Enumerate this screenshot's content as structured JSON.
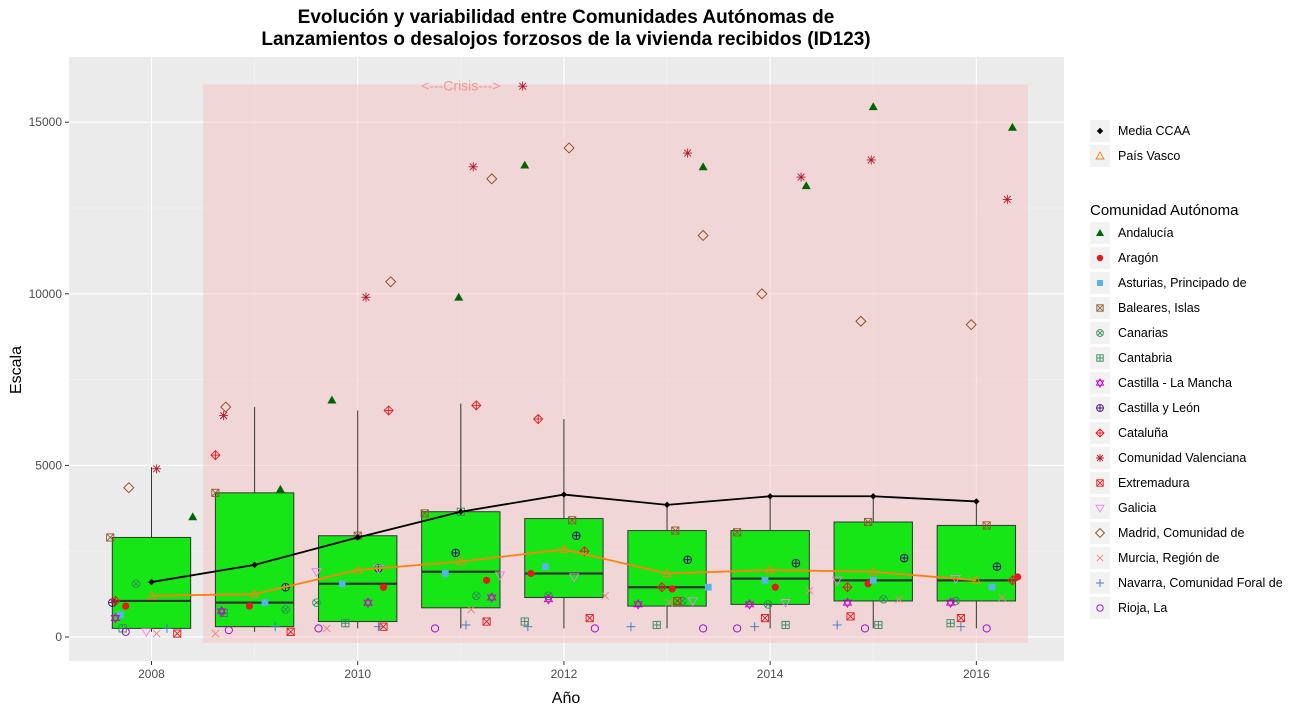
{
  "chart_data": {
    "type": "box",
    "title_line1": "Evolución y variabilidad entre Comunidades Autónomas de",
    "title_line2": "Lanzamientos o desalojos forzosos de la vivienda recibidos (ID123)",
    "xlabel": "Año",
    "ylabel": "Escala",
    "xlim": [
      2007.2,
      2016.85
    ],
    "ylim": [
      -700,
      16900
    ],
    "x_ticks": [
      2008,
      2010,
      2012,
      2014,
      2016
    ],
    "y_ticks": [
      0,
      5000,
      10000,
      15000
    ],
    "grid": true,
    "crisis_region": {
      "x_start": 2008.5,
      "x_end": 2016.5,
      "y_top": 16100,
      "label": "<---Crisis--->",
      "label_x": 2011.0,
      "color": "#f7b9b9"
    },
    "box_color": "#16e616",
    "boxes": [
      {
        "year": 2008,
        "q1": 250,
        "median": 1050,
        "q3": 2900,
        "lower": 150,
        "upper": 4950
      },
      {
        "year": 2009,
        "q1": 300,
        "median": 1000,
        "q3": 4200,
        "lower": 150,
        "upper": 6700
      },
      {
        "year": 2010,
        "q1": 450,
        "median": 1550,
        "q3": 2950,
        "lower": 250,
        "upper": 6600
      },
      {
        "year": 2011,
        "q1": 850,
        "median": 1900,
        "q3": 3650,
        "lower": 250,
        "upper": 6800
      },
      {
        "year": 2012,
        "q1": 1150,
        "median": 1850,
        "q3": 3450,
        "lower": 250,
        "upper": 6350
      },
      {
        "year": 2013,
        "q1": 900,
        "median": 1450,
        "q3": 3100,
        "lower": 250,
        "upper": 3800
      },
      {
        "year": 2014,
        "q1": 950,
        "median": 1700,
        "q3": 3100,
        "lower": 250,
        "upper": 4050
      },
      {
        "year": 2015,
        "q1": 1050,
        "median": 1650,
        "q3": 3350,
        "lower": 250,
        "upper": 4100
      },
      {
        "year": 2016,
        "q1": 1050,
        "median": 1650,
        "q3": 3250,
        "lower": 250,
        "upper": 3900
      }
    ],
    "series": [
      {
        "name": "Media CCAA",
        "color": "#000000",
        "shape": "diamond",
        "line": true,
        "points": [
          [
            2008,
            1600
          ],
          [
            2009,
            2100
          ],
          [
            2010,
            2900
          ],
          [
            2011,
            3650
          ],
          [
            2012,
            4150
          ],
          [
            2013,
            3850
          ],
          [
            2014,
            4100
          ],
          [
            2015,
            4100
          ],
          [
            2016,
            3950
          ]
        ]
      },
      {
        "name": "País Vasco",
        "color": "#ff7f0e",
        "shape": "triangle-open",
        "line": true,
        "points": [
          [
            2008,
            1200
          ],
          [
            2009,
            1250
          ],
          [
            2010,
            1950
          ],
          [
            2011,
            2200
          ],
          [
            2012,
            2550
          ],
          [
            2013,
            1850
          ],
          [
            2014,
            1950
          ],
          [
            2015,
            1900
          ],
          [
            2016,
            1650
          ]
        ]
      }
    ],
    "legend_title": "Comunidad Autónoma",
    "regions": [
      {
        "name": "Andalucía",
        "color": "#006400",
        "shape": "triangle-filled",
        "points": [
          [
            2008.4,
            3500
          ],
          [
            2009.25,
            4300
          ],
          [
            2009.75,
            6900
          ],
          [
            2010.98,
            9900
          ],
          [
            2011.62,
            13750
          ],
          [
            2013.35,
            13700
          ],
          [
            2014.35,
            13150
          ],
          [
            2015.0,
            15450
          ],
          [
            2016.35,
            14850
          ]
        ]
      },
      {
        "name": "Aragón",
        "color": "#e31a1c",
        "shape": "circle-filled",
        "points": [
          [
            2007.75,
            900
          ],
          [
            2008.95,
            900
          ],
          [
            2010.25,
            1450
          ],
          [
            2011.25,
            1650
          ],
          [
            2011.68,
            1850
          ],
          [
            2013.05,
            1400
          ],
          [
            2014.05,
            1450
          ],
          [
            2014.95,
            1550
          ],
          [
            2016.4,
            1750
          ]
        ]
      },
      {
        "name": "Asturias, Principado de",
        "color": "#56b4e9",
        "shape": "square-filled",
        "points": [
          [
            2007.7,
            650
          ],
          [
            2009.1,
            1000
          ],
          [
            2009.85,
            1550
          ],
          [
            2010.85,
            1850
          ],
          [
            2011.82,
            2050
          ],
          [
            2013.4,
            1450
          ],
          [
            2013.95,
            1650
          ],
          [
            2015.0,
            1650
          ],
          [
            2016.15,
            1450
          ]
        ]
      },
      {
        "name": "Baleares, Islas",
        "color": "#8b5a2b",
        "shape": "square-x",
        "points": [
          [
            2007.6,
            2900
          ],
          [
            2008.62,
            4200
          ],
          [
            2010.0,
            2950
          ],
          [
            2010.65,
            3600
          ],
          [
            2012.08,
            3400
          ],
          [
            2013.08,
            3100
          ],
          [
            2013.68,
            3050
          ],
          [
            2014.95,
            3350
          ],
          [
            2016.1,
            3250
          ]
        ]
      },
      {
        "name": "Canarias",
        "color": "#2e8b57",
        "shape": "circle-x",
        "points": [
          [
            2007.85,
            1550
          ],
          [
            2009.3,
            800
          ],
          [
            2009.6,
            1000
          ],
          [
            2011.15,
            1200
          ],
          [
            2011.85,
            1200
          ],
          [
            2013.15,
            1050
          ],
          [
            2013.98,
            950
          ],
          [
            2015.1,
            1100
          ],
          [
            2015.8,
            1050
          ]
        ]
      },
      {
        "name": "Cantabria",
        "color": "#2e8b57",
        "shape": "square-plus",
        "points": [
          [
            2007.72,
            250
          ],
          [
            2008.7,
            700
          ],
          [
            2009.88,
            400
          ],
          [
            2011.0,
            3650
          ],
          [
            2011.62,
            450
          ],
          [
            2012.9,
            350
          ],
          [
            2014.15,
            350
          ],
          [
            2015.05,
            350
          ],
          [
            2015.75,
            400
          ]
        ]
      },
      {
        "name": "Castilla - La Mancha",
        "color": "#cc00cc",
        "shape": "star-of-david",
        "points": [
          [
            2007.65,
            550
          ],
          [
            2008.68,
            750
          ],
          [
            2010.1,
            1000
          ],
          [
            2011.3,
            1150
          ],
          [
            2011.85,
            1100
          ],
          [
            2012.72,
            950
          ],
          [
            2013.8,
            950
          ],
          [
            2014.75,
            1000
          ],
          [
            2015.75,
            1000
          ]
        ]
      },
      {
        "name": "Castilla y León",
        "color": "#3f007d",
        "shape": "circle-plus",
        "points": [
          [
            2007.62,
            1000
          ],
          [
            2009.3,
            1450
          ],
          [
            2010.2,
            2000
          ],
          [
            2010.95,
            2450
          ],
          [
            2012.12,
            2950
          ],
          [
            2013.2,
            2250
          ],
          [
            2014.25,
            2150
          ],
          [
            2015.3,
            2300
          ],
          [
            2016.2,
            2050
          ]
        ]
      },
      {
        "name": "Cataluña",
        "color": "#e31a1c",
        "shape": "diamond-plus",
        "points": [
          [
            2007.65,
            1050
          ],
          [
            2008.62,
            5300
          ],
          [
            2010.3,
            6600
          ],
          [
            2011.15,
            6750
          ],
          [
            2011.75,
            6350
          ],
          [
            2012.2,
            2500
          ],
          [
            2012.95,
            1450
          ],
          [
            2014.75,
            1450
          ],
          [
            2016.35,
            1650
          ]
        ]
      },
      {
        "name": "Comunidad Valenciana",
        "color": "#b2182b",
        "shape": "asterisk",
        "points": [
          [
            2008.05,
            4900
          ],
          [
            2008.7,
            6450
          ],
          [
            2010.08,
            9900
          ],
          [
            2011.12,
            13700
          ],
          [
            2011.6,
            16050
          ],
          [
            2013.2,
            14100
          ],
          [
            2014.3,
            13400
          ],
          [
            2014.98,
            13900
          ],
          [
            2016.3,
            12750
          ]
        ]
      },
      {
        "name": "Extremadura",
        "color": "#e31a1c",
        "shape": "square-x-red",
        "points": [
          [
            2008.25,
            100
          ],
          [
            2009.35,
            150
          ],
          [
            2010.25,
            300
          ],
          [
            2011.25,
            450
          ],
          [
            2012.25,
            550
          ],
          [
            2013.1,
            1050
          ],
          [
            2013.95,
            550
          ],
          [
            2014.78,
            600
          ],
          [
            2015.85,
            550
          ]
        ]
      },
      {
        "name": "Galicia",
        "color": "#ee82ee",
        "shape": "triangle-down-open",
        "points": [
          [
            2007.95,
            150
          ],
          [
            2009.6,
            1900
          ],
          [
            2010.2,
            2000
          ],
          [
            2011.38,
            1800
          ],
          [
            2012.1,
            1750
          ],
          [
            2013.25,
            1050
          ],
          [
            2014.15,
            1000
          ],
          [
            2014.65,
            1650
          ],
          [
            2015.8,
            1700
          ]
        ]
      },
      {
        "name": "Madrid, Comunidad de",
        "color": "#8b4513",
        "shape": "diamond-open",
        "points": [
          [
            2007.78,
            4350
          ],
          [
            2008.72,
            6700
          ],
          [
            2010.32,
            10350
          ],
          [
            2011.3,
            13350
          ],
          [
            2012.05,
            14250
          ],
          [
            2013.35,
            11700
          ],
          [
            2013.92,
            10000
          ],
          [
            2014.88,
            9200
          ],
          [
            2015.95,
            9100
          ]
        ]
      },
      {
        "name": "Murcia, Región de",
        "color": "#f08080",
        "shape": "x",
        "points": [
          [
            2008.05,
            100
          ],
          [
            2008.62,
            100
          ],
          [
            2009.7,
            250
          ],
          [
            2011.1,
            800
          ],
          [
            2012.4,
            1200
          ],
          [
            2013.02,
            1000
          ],
          [
            2014.38,
            1350
          ],
          [
            2015.25,
            1100
          ],
          [
            2016.25,
            1150
          ]
        ]
      },
      {
        "name": "Navarra, Comunidad Foral de",
        "color": "#3a75c4",
        "shape": "plus",
        "points": [
          [
            2008.15,
            250
          ],
          [
            2009.2,
            300
          ],
          [
            2010.2,
            300
          ],
          [
            2011.05,
            350
          ],
          [
            2011.65,
            300
          ],
          [
            2012.65,
            300
          ],
          [
            2013.85,
            300
          ],
          [
            2014.65,
            350
          ],
          [
            2015.85,
            300
          ]
        ]
      },
      {
        "name": "Rioja, La",
        "color": "#9400d3",
        "shape": "circle-open",
        "points": [
          [
            2007.75,
            150
          ],
          [
            2008.75,
            200
          ],
          [
            2009.62,
            250
          ],
          [
            2010.75,
            250
          ],
          [
            2012.3,
            250
          ],
          [
            2013.35,
            250
          ],
          [
            2013.68,
            250
          ],
          [
            2014.92,
            250
          ],
          [
            2016.1,
            250
          ]
        ]
      }
    ]
  }
}
